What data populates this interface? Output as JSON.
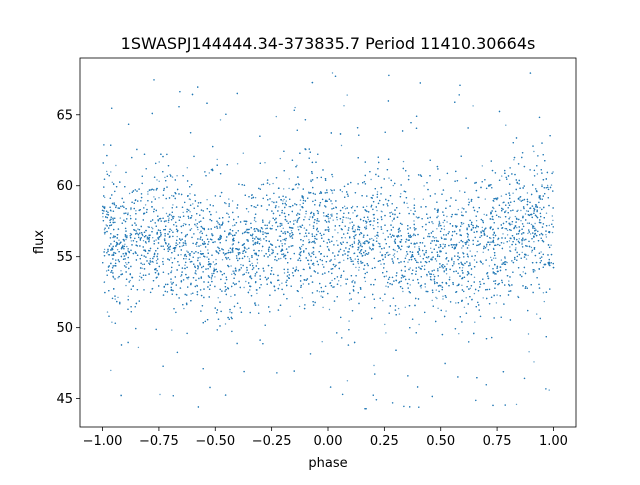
{
  "chart_data": {
    "type": "scatter",
    "title": "1SWASPJ144444.34-373835.7 Period 11410.30664s",
    "xlabel": "phase",
    "ylabel": "flux",
    "xlim": [
      -1.1,
      1.1
    ],
    "ylim": [
      43,
      69
    ],
    "xticks": [
      -1.0,
      -0.75,
      -0.5,
      -0.25,
      0.0,
      0.25,
      0.5,
      0.75,
      1.0
    ],
    "xtick_labels": [
      "−1.00",
      "−0.75",
      "−0.50",
      "−0.25",
      "0.00",
      "0.25",
      "0.50",
      "0.75",
      "1.00"
    ],
    "yticks": [
      45,
      50,
      55,
      60,
      65
    ],
    "ytick_labels": [
      "45",
      "50",
      "55",
      "60",
      "65"
    ],
    "grid": false,
    "legend": "none",
    "color": "#1f77b4",
    "series": [
      {
        "phase_range": [
          -1.0,
          1.0
        ],
        "flux_range": [
          44,
          68
        ],
        "flux_center": 56.2,
        "dense_band": [
          52,
          60
        ],
        "points": [
          [
            -1.0,
            56.5
          ],
          [
            -0.9,
            55.9
          ],
          [
            -0.8,
            56.8
          ],
          [
            -0.7,
            56.2
          ],
          [
            -0.6,
            55.6
          ],
          [
            -0.5,
            55.1
          ],
          [
            -0.4,
            55.3
          ],
          [
            -0.3,
            55.9
          ],
          [
            -0.2,
            56.6
          ],
          [
            -0.1,
            56.9
          ],
          [
            0.0,
            56.5
          ],
          [
            0.1,
            55.9
          ],
          [
            0.2,
            56.8
          ],
          [
            0.3,
            56.2
          ],
          [
            0.4,
            55.6
          ],
          [
            0.5,
            55.1
          ],
          [
            0.6,
            55.3
          ],
          [
            0.7,
            55.9
          ],
          [
            0.8,
            56.6
          ],
          [
            0.9,
            56.9
          ],
          [
            1.0,
            56.5
          ]
        ]
      }
    ]
  }
}
